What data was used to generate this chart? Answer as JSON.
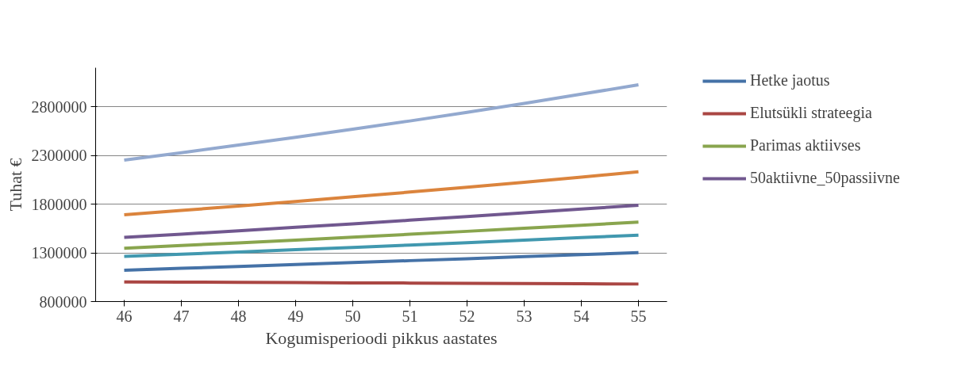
{
  "chart_data": {
    "type": "line",
    "xlabel": "Kogumisperioodi pikkus aastates",
    "ylabel": "Tuhat €",
    "x": [
      46,
      47,
      48,
      49,
      50,
      51,
      52,
      53,
      54,
      55
    ],
    "xlim": [
      45.5,
      55.5
    ],
    "xticks": [
      46,
      47,
      48,
      49,
      50,
      51,
      52,
      53,
      54,
      55
    ],
    "ylim": [
      800000,
      3200000
    ],
    "yticks": [
      800000,
      1300000,
      1800000,
      2300000,
      2800000
    ],
    "grid": "y",
    "legend": "right",
    "marker": "none",
    "line_style": "solid",
    "series": [
      {
        "name": "Hetke jaotus",
        "color": "#4572a7",
        "values": [
          1122000,
          1141000,
          1160000,
          1180000,
          1200000,
          1220000,
          1240000,
          1261000,
          1282000,
          1302000
        ]
      },
      {
        "name": "Elutsükli strateegia",
        "color": "#aa4643",
        "values": [
          1002000,
          1000000,
          997000,
          995000,
          992000,
          990000,
          988000,
          985000,
          983000,
          980000
        ]
      },
      {
        "name": "Parimas aktiivses",
        "color": "#89a54e",
        "values": [
          1347000,
          1375000,
          1403000,
          1431000,
          1461000,
          1491000,
          1521000,
          1552000,
          1584000,
          1616000
        ]
      },
      {
        "name": "50aktiivne_50passiivne",
        "color": "#71588f",
        "values": [
          1459000,
          1492000,
          1527000,
          1562000,
          1598000,
          1635000,
          1672000,
          1711000,
          1749000,
          1789000
        ]
      },
      {
        "color": "#4198af",
        "values": [
          1264000,
          1286000,
          1309000,
          1333000,
          1356000,
          1380000,
          1405000,
          1430000,
          1456000,
          1482000
        ]
      },
      {
        "color": "#db843d",
        "values": [
          1691000,
          1735000,
          1781000,
          1827000,
          1875000,
          1924000,
          1974000,
          2025000,
          2078000,
          2133000
        ]
      },
      {
        "color": "#93a9cf",
        "values": [
          2253000,
          2328000,
          2406000,
          2486000,
          2569000,
          2654000,
          2743000,
          2834000,
          2929000,
          3025000
        ]
      }
    ]
  }
}
